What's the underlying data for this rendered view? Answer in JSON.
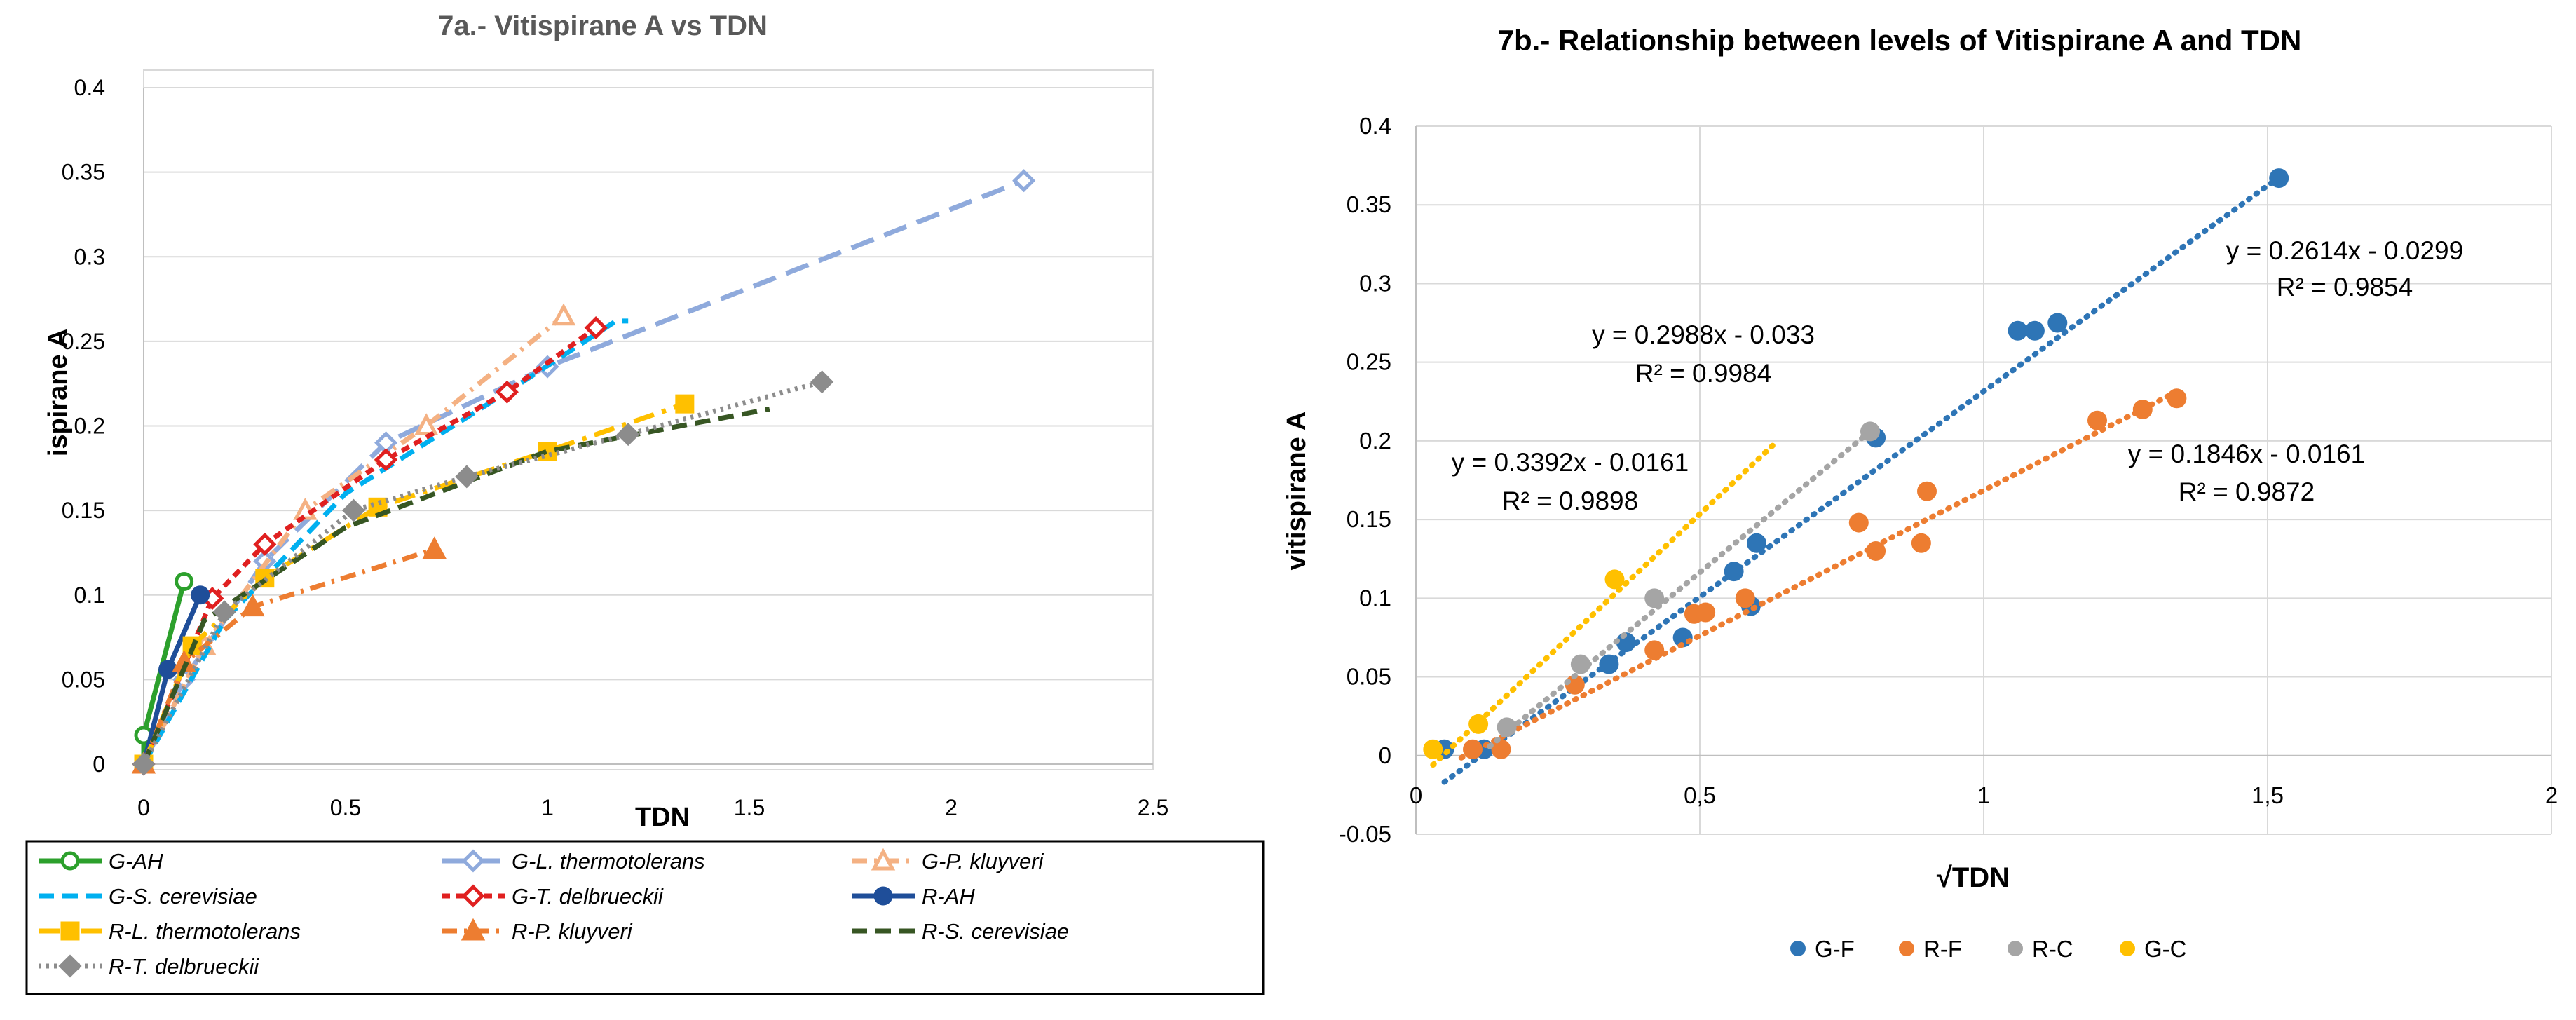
{
  "chart_data": [
    {
      "id": "7a",
      "type": "line",
      "title": "7a.- Vitispirane A vs TDN",
      "xlabel": "TDN",
      "ylabel": "ispirane A",
      "xlim": [
        0,
        2.5
      ],
      "ylim": [
        0,
        0.4
      ],
      "x_ticks": [
        "0",
        "0.5",
        "1",
        "1.5",
        "2",
        "2.5"
      ],
      "y_ticks": [
        "0",
        "0.05",
        "0.1",
        "0.15",
        "0.2",
        "0.25",
        "0.3",
        "0.35",
        "0.4"
      ],
      "grid": "horizontal",
      "legend_position": "bottom",
      "series": [
        {
          "name": "G-AH",
          "color": "#2ca02c",
          "dash": "solid",
          "marker": "circle-open",
          "points": [
            [
              0,
              0
            ],
            [
              0,
              0.017
            ],
            [
              0.1,
              0.108
            ]
          ]
        },
        {
          "name": "G-L. thermotolerans",
          "color": "#8faadc",
          "dash": "longdash",
          "marker": "diamond-open",
          "points": [
            [
              0,
              0
            ],
            [
              0.1,
              0.05
            ],
            [
              0.3,
              0.12
            ],
            [
              0.6,
              0.19
            ],
            [
              1.0,
              0.235
            ],
            [
              2.18,
              0.345
            ]
          ]
        },
        {
          "name": "G-P. kluyveri",
          "color": "#f4b183",
          "dash": "dashdot",
          "marker": "triangle-open",
          "points": [
            [
              0,
              0
            ],
            [
              0.15,
              0.07
            ],
            [
              0.4,
              0.15
            ],
            [
              0.7,
              0.2
            ],
            [
              1.04,
              0.265
            ]
          ]
        },
        {
          "name": "G-S. cerevisiae",
          "color": "#00b0f0",
          "dash": "dash",
          "marker": "none",
          "points": [
            [
              0,
              0
            ],
            [
              0.2,
              0.085
            ],
            [
              0.5,
              0.16
            ],
            [
              0.9,
              0.22
            ],
            [
              1.17,
              0.262
            ],
            [
              1.2,
              0.262
            ]
          ]
        },
        {
          "name": "G-T. delbrueckii",
          "color": "#e02020",
          "dash": "shortdash",
          "marker": "diamond-open",
          "points": [
            [
              0,
              0
            ],
            [
              0.17,
              0.098
            ],
            [
              0.3,
              0.13
            ],
            [
              0.6,
              0.18
            ],
            [
              0.9,
              0.22
            ],
            [
              1.12,
              0.258
            ]
          ]
        },
        {
          "name": "R-AH",
          "color": "#1f4e99",
          "dash": "solid",
          "marker": "circle-filled",
          "points": [
            [
              0,
              0
            ],
            [
              0.06,
              0.056
            ],
            [
              0.14,
              0.1
            ]
          ]
        },
        {
          "name": "R-L. thermotolerans",
          "color": "#ffc000",
          "dash": "longdashdot",
          "marker": "square-filled",
          "points": [
            [
              0,
              0
            ],
            [
              0.12,
              0.07
            ],
            [
              0.3,
              0.11
            ],
            [
              0.58,
              0.152
            ],
            [
              1.0,
              0.185
            ],
            [
              1.34,
              0.213
            ]
          ]
        },
        {
          "name": "R-P. kluyveri",
          "color": "#ed7d31",
          "dash": "dashdot",
          "marker": "triangle-filled",
          "points": [
            [
              0,
              0
            ],
            [
              0.1,
              0.06
            ],
            [
              0.27,
              0.093
            ],
            [
              0.72,
              0.127
            ]
          ]
        },
        {
          "name": "R-S. cerevisiae",
          "color": "#375623",
          "dash": "dash",
          "marker": "none",
          "points": [
            [
              0,
              0
            ],
            [
              0.15,
              0.085
            ],
            [
              0.5,
              0.14
            ],
            [
              1.0,
              0.185
            ],
            [
              1.55,
              0.21
            ]
          ]
        },
        {
          "name": "R-T. delbrueckii",
          "color": "#8c8c8c",
          "dash": "dot",
          "marker": "diamond-filled",
          "points": [
            [
              0,
              0
            ],
            [
              0.2,
              0.09
            ],
            [
              0.52,
              0.15
            ],
            [
              0.8,
              0.17
            ],
            [
              1.2,
              0.195
            ],
            [
              1.68,
              0.226
            ]
          ]
        }
      ]
    },
    {
      "id": "7b",
      "type": "scatter",
      "title": "7b.- Relationship between levels of Vitispirane A and TDN",
      "xlabel": "√TDN",
      "ylabel": "vitispirane A",
      "xlim": [
        0,
        2
      ],
      "ylim": [
        -0.05,
        0.4
      ],
      "x_ticks": [
        "0",
        "0,5",
        "1",
        "1,5",
        "2"
      ],
      "y_ticks": [
        "-0.05",
        "0",
        "0.05",
        "0.1",
        "0.15",
        "0.2",
        "0.25",
        "0.3",
        "0.35",
        "0.4"
      ],
      "grid": "both",
      "legend_position": "bottom",
      "series": [
        {
          "name": "G-F",
          "color": "#2e75b6",
          "points": [
            [
              0.05,
              0.004
            ],
            [
              0.12,
              0.004
            ],
            [
              0.34,
              0.058
            ],
            [
              0.37,
              0.072
            ],
            [
              0.47,
              0.075
            ],
            [
              0.56,
              0.117
            ],
            [
              0.59,
              0.095
            ],
            [
              0.6,
              0.135
            ],
            [
              0.81,
              0.202
            ],
            [
              1.06,
              0.27
            ],
            [
              1.09,
              0.27
            ],
            [
              1.13,
              0.275
            ],
            [
              1.52,
              0.367
            ]
          ],
          "trendline": {
            "slope": 0.2614,
            "intercept": -0.0299,
            "x_range": [
              0.05,
              1.52
            ],
            "equation": "y = 0.2614x - 0.0299",
            "r2": "R² = 0.9854"
          }
        },
        {
          "name": "R-F",
          "color": "#ed7d31",
          "points": [
            [
              0.1,
              0.004
            ],
            [
              0.15,
              0.004
            ],
            [
              0.28,
              0.045
            ],
            [
              0.42,
              0.067
            ],
            [
              0.49,
              0.09
            ],
            [
              0.51,
              0.091
            ],
            [
              0.58,
              0.1
            ],
            [
              0.78,
              0.148
            ],
            [
              0.81,
              0.13
            ],
            [
              0.89,
              0.135
            ],
            [
              0.9,
              0.168
            ],
            [
              1.2,
              0.213
            ],
            [
              1.28,
              0.22
            ],
            [
              1.34,
              0.227
            ]
          ],
          "trendline": {
            "slope": 0.1846,
            "intercept": -0.0161,
            "x_range": [
              0.08,
              1.34
            ],
            "equation": "y = 0.1846x - 0.0161",
            "r2": "R² = 0.9872"
          }
        },
        {
          "name": "R-C",
          "color": "#a5a5a5",
          "points": [
            [
              0.16,
              0.018
            ],
            [
              0.29,
              0.058
            ],
            [
              0.42,
              0.1
            ],
            [
              0.8,
              0.206
            ]
          ],
          "trendline": {
            "slope": 0.2988,
            "intercept": -0.033,
            "x_range": [
              0.13,
              0.8
            ],
            "equation": "y = 0.2988x - 0.033",
            "r2": "R² = 0.9984"
          }
        },
        {
          "name": "G-C",
          "color": "#ffc000",
          "points": [
            [
              0.03,
              0.004
            ],
            [
              0.11,
              0.02
            ],
            [
              0.35,
              0.112
            ]
          ],
          "trendline": {
            "slope": 0.3392,
            "intercept": -0.0161,
            "x_range": [
              0.03,
              0.63
            ],
            "equation": "y = 0.3392x - 0.0161",
            "r2": "R² = 0.9898"
          }
        }
      ]
    }
  ]
}
